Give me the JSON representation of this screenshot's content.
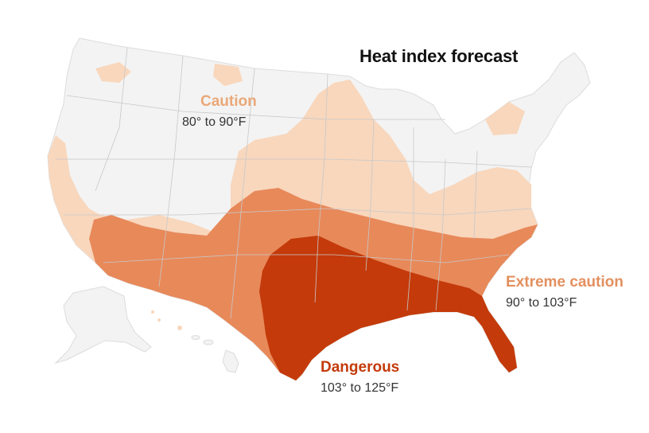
{
  "title": "Heat index forecast",
  "colors": {
    "background": "#ffffff",
    "land_base": "#f3f3f3",
    "state_border": "#c8c8c8",
    "caution": "#f8d7bd",
    "extreme_caution": "#e8895a",
    "dangerous": "#c43a0a",
    "caution_label": "#eaa878",
    "extreme_label": "#e3905f",
    "dangerous_label": "#c43a0a"
  },
  "categories": [
    {
      "key": "caution",
      "name": "Caution",
      "range": "80° to 90°F"
    },
    {
      "key": "extreme",
      "name": "Extreme caution",
      "range": "90° to 103°F"
    },
    {
      "key": "dangerous",
      "name": "Dangerous",
      "range": "103° to 125°F"
    }
  ]
}
